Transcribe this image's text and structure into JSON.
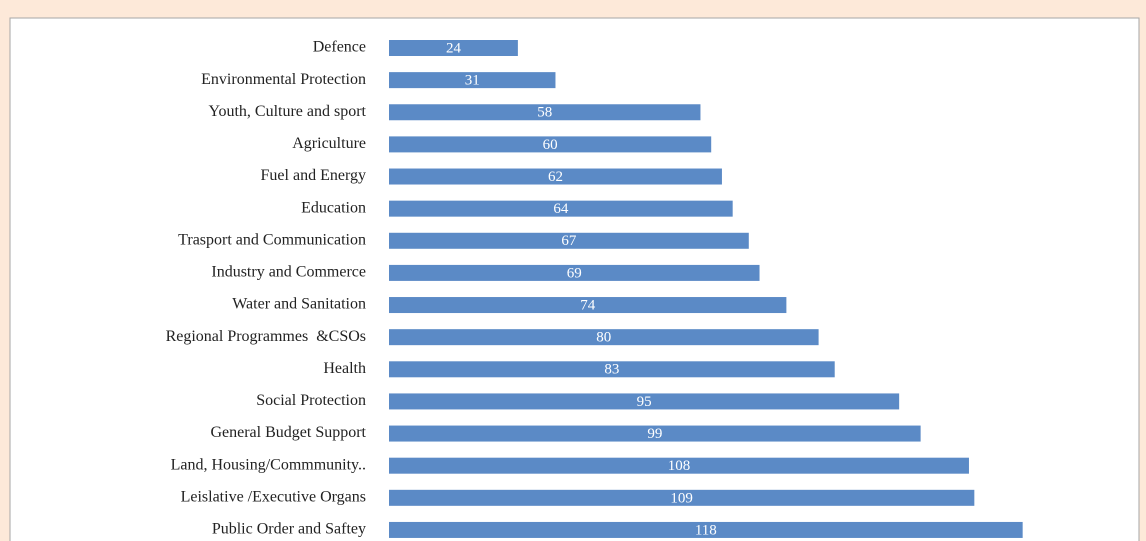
{
  "chart_data": {
    "type": "bar",
    "orientation": "horizontal",
    "color": "#5b8ac6",
    "categories": [
      "Defence",
      "Environmental Protection",
      "Youth, Culture and sport",
      "Agriculture",
      "Fuel and Energy",
      "Education",
      "Trasport and Communication",
      "Industry and Commerce",
      "Water and Sanitation",
      "Regional Programmes  &CSOs",
      "Health",
      "Social Protection",
      "General Budget Support",
      "Land, Housing/Commmunity..",
      "Leislative /Executive Organs",
      "Public Order and Saftey"
    ],
    "values": [
      24,
      31,
      58,
      60,
      62,
      64,
      67,
      69,
      74,
      80,
      83,
      95,
      99,
      108,
      109,
      118
    ]
  }
}
